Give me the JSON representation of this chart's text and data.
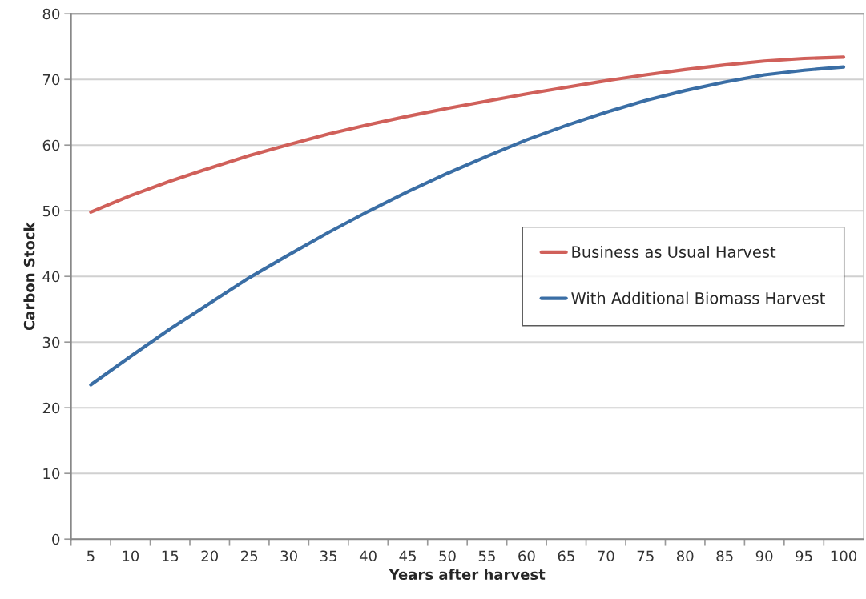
{
  "chart_data": {
    "type": "line",
    "xlabel": "Years after harvest",
    "ylabel": "Carbon Stock",
    "x": [
      5,
      10,
      15,
      20,
      25,
      30,
      35,
      40,
      45,
      50,
      55,
      60,
      65,
      70,
      75,
      80,
      85,
      90,
      95,
      100
    ],
    "series": [
      {
        "name": "Business as Usual Harvest",
        "color": "#d0605a",
        "values": [
          49.8,
          52.3,
          54.5,
          56.5,
          58.4,
          60.1,
          61.7,
          63.1,
          64.4,
          65.6,
          66.7,
          67.8,
          68.8,
          69.8,
          70.7,
          71.5,
          72.2,
          72.8,
          73.2,
          73.4
        ]
      },
      {
        "name": "With Additional Biomass Harvest",
        "color": "#3a6ea5",
        "values": [
          23.5,
          27.8,
          32.0,
          35.9,
          39.8,
          43.3,
          46.7,
          49.9,
          52.9,
          55.7,
          58.3,
          60.8,
          63.0,
          65.0,
          66.8,
          68.3,
          69.6,
          70.7,
          71.4,
          71.9
        ]
      }
    ],
    "xlim": [
      2.5,
      102.5
    ],
    "xticks": [
      5,
      10,
      15,
      20,
      25,
      30,
      35,
      40,
      45,
      50,
      55,
      60,
      65,
      70,
      75,
      80,
      85,
      90,
      95,
      100,
      {
        "value": 2.5,
        "label": null
      },
      {
        "value": 7.5,
        "label": null
      },
      {
        "value": 12.5,
        "label": null
      },
      {
        "value": 17.5,
        "label": null
      },
      {
        "value": 22.5,
        "label": null
      },
      {
        "value": 27.5,
        "label": null
      },
      {
        "value": 32.5,
        "label": null
      },
      {
        "value": 37.5,
        "label": null
      },
      {
        "value": 42.5,
        "label": null
      },
      {
        "value": 47.5,
        "label": null
      },
      {
        "value": 52.5,
        "label": null
      },
      {
        "value": 57.5,
        "label": null
      },
      {
        "value": 62.5,
        "label": null
      },
      {
        "value": 67.5,
        "label": null
      },
      {
        "value": 72.5,
        "label": null
      },
      {
        "value": 77.5,
        "label": null
      },
      {
        "value": 82.5,
        "label": null
      },
      {
        "value": 87.5,
        "label": null
      },
      {
        "value": 92.5,
        "label": null
      },
      {
        "value": 97.5,
        "label": null
      }
    ],
    "ylim": [
      0,
      80
    ],
    "yticks": [
      0,
      10,
      20,
      30,
      40,
      50,
      60,
      70,
      80
    ],
    "grid": "y",
    "legend": "right",
    "marker": "none",
    "line_style": "solid"
  }
}
